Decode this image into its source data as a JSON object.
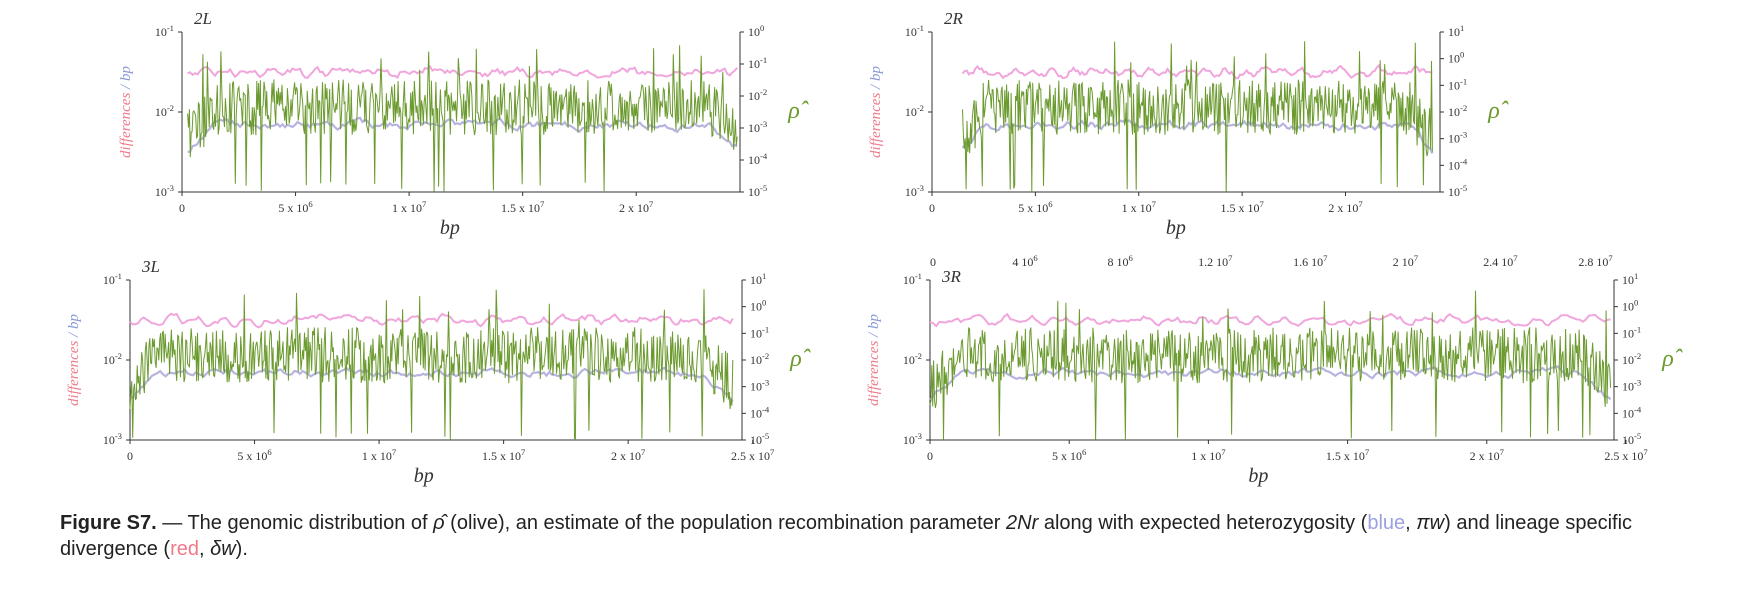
{
  "figure": {
    "panels": [
      {
        "label": "2L",
        "left_axis_label_part1": "differences",
        "left_axis_label_sep": " / ",
        "left_axis_label_part2": "bp",
        "left_ticks": [
          "10-1",
          "10-2",
          "10-3"
        ],
        "right_ticks": [
          "100",
          "10-1",
          "10-2",
          "10-3",
          "10-4",
          "10-5"
        ],
        "right_axis_label": "ρ̂",
        "bottom_ticks": [
          "0",
          "5 x 106",
          "1 x 107",
          "1.5 x 107",
          "2 x 107"
        ],
        "bottom_axis_label": "bp",
        "top_ticks": []
      },
      {
        "label": "2R",
        "left_axis_label_part1": "differences",
        "left_axis_label_sep": " / ",
        "left_axis_label_part2": "bp",
        "left_ticks": [
          "10-1",
          "10-2",
          "10-3"
        ],
        "right_ticks": [
          "101",
          "100",
          "10-1",
          "10-2",
          "10-3",
          "10-4",
          "10-5"
        ],
        "right_axis_label": "ρ̂",
        "bottom_ticks": [
          "0",
          "5 x 106",
          "1 x 107",
          "1.5 x 107",
          "2 x 107"
        ],
        "bottom_axis_label": "bp",
        "top_ticks": []
      },
      {
        "label": "3L",
        "left_axis_label_part1": "differences",
        "left_axis_label_sep": " / ",
        "left_axis_label_part2": "bp",
        "left_ticks": [
          "10-1",
          "10-2",
          "10-3"
        ],
        "right_ticks": [
          "101",
          "100",
          "10-1",
          "10-2",
          "10-3",
          "10-4",
          "10-5"
        ],
        "right_axis_label": "ρ̂",
        "bottom_ticks": [
          "0",
          "5 x 106",
          "1 x 107",
          "1.5 x 107",
          "2 x 107",
          "2.5 x 107"
        ],
        "bottom_axis_label": "bp",
        "top_ticks": []
      },
      {
        "label": "3R",
        "left_axis_label_part1": "differences",
        "left_axis_label_sep": " / ",
        "left_axis_label_part2": "bp",
        "left_ticks": [
          "10-1",
          "10-2",
          "10-3"
        ],
        "right_ticks": [
          "101",
          "100",
          "10-1",
          "10-2",
          "10-3",
          "10-4",
          "10-5"
        ],
        "right_axis_label": "ρ̂",
        "bottom_ticks": [
          "0",
          "5 x 106",
          "1 x 107",
          "1.5 x 107",
          "2 x 107",
          "2.5 x 107"
        ],
        "bottom_axis_label": "bp",
        "top_ticks": [
          "0",
          "4 106",
          "8 106",
          "1.2 107",
          "1.6 107",
          "2 107",
          "2.4 107",
          "2.8 107"
        ]
      }
    ]
  },
  "colors": {
    "olive": "#6b9a2e",
    "blue": "#b7b4e0",
    "pink": "#f0a6dc",
    "axis": "#333333",
    "label_red": "#f07a8a",
    "label_blue": "#8a9ad8"
  },
  "caption": {
    "title": "Figure S7.",
    "part1": " — The genomic distribution of ",
    "rho": "ρ̂",
    "part2": " (olive), an estimate of the population recombination parameter ",
    "param": "2Nr",
    "part3": " along with expected heterozygosity (",
    "blue_word": "blue",
    "part4": ", ",
    "pi": "πw",
    "part5": ") and lineage specific divergence (",
    "red_word": "red",
    "part6": ", ",
    "delta": "δw",
    "part7": ")."
  }
}
